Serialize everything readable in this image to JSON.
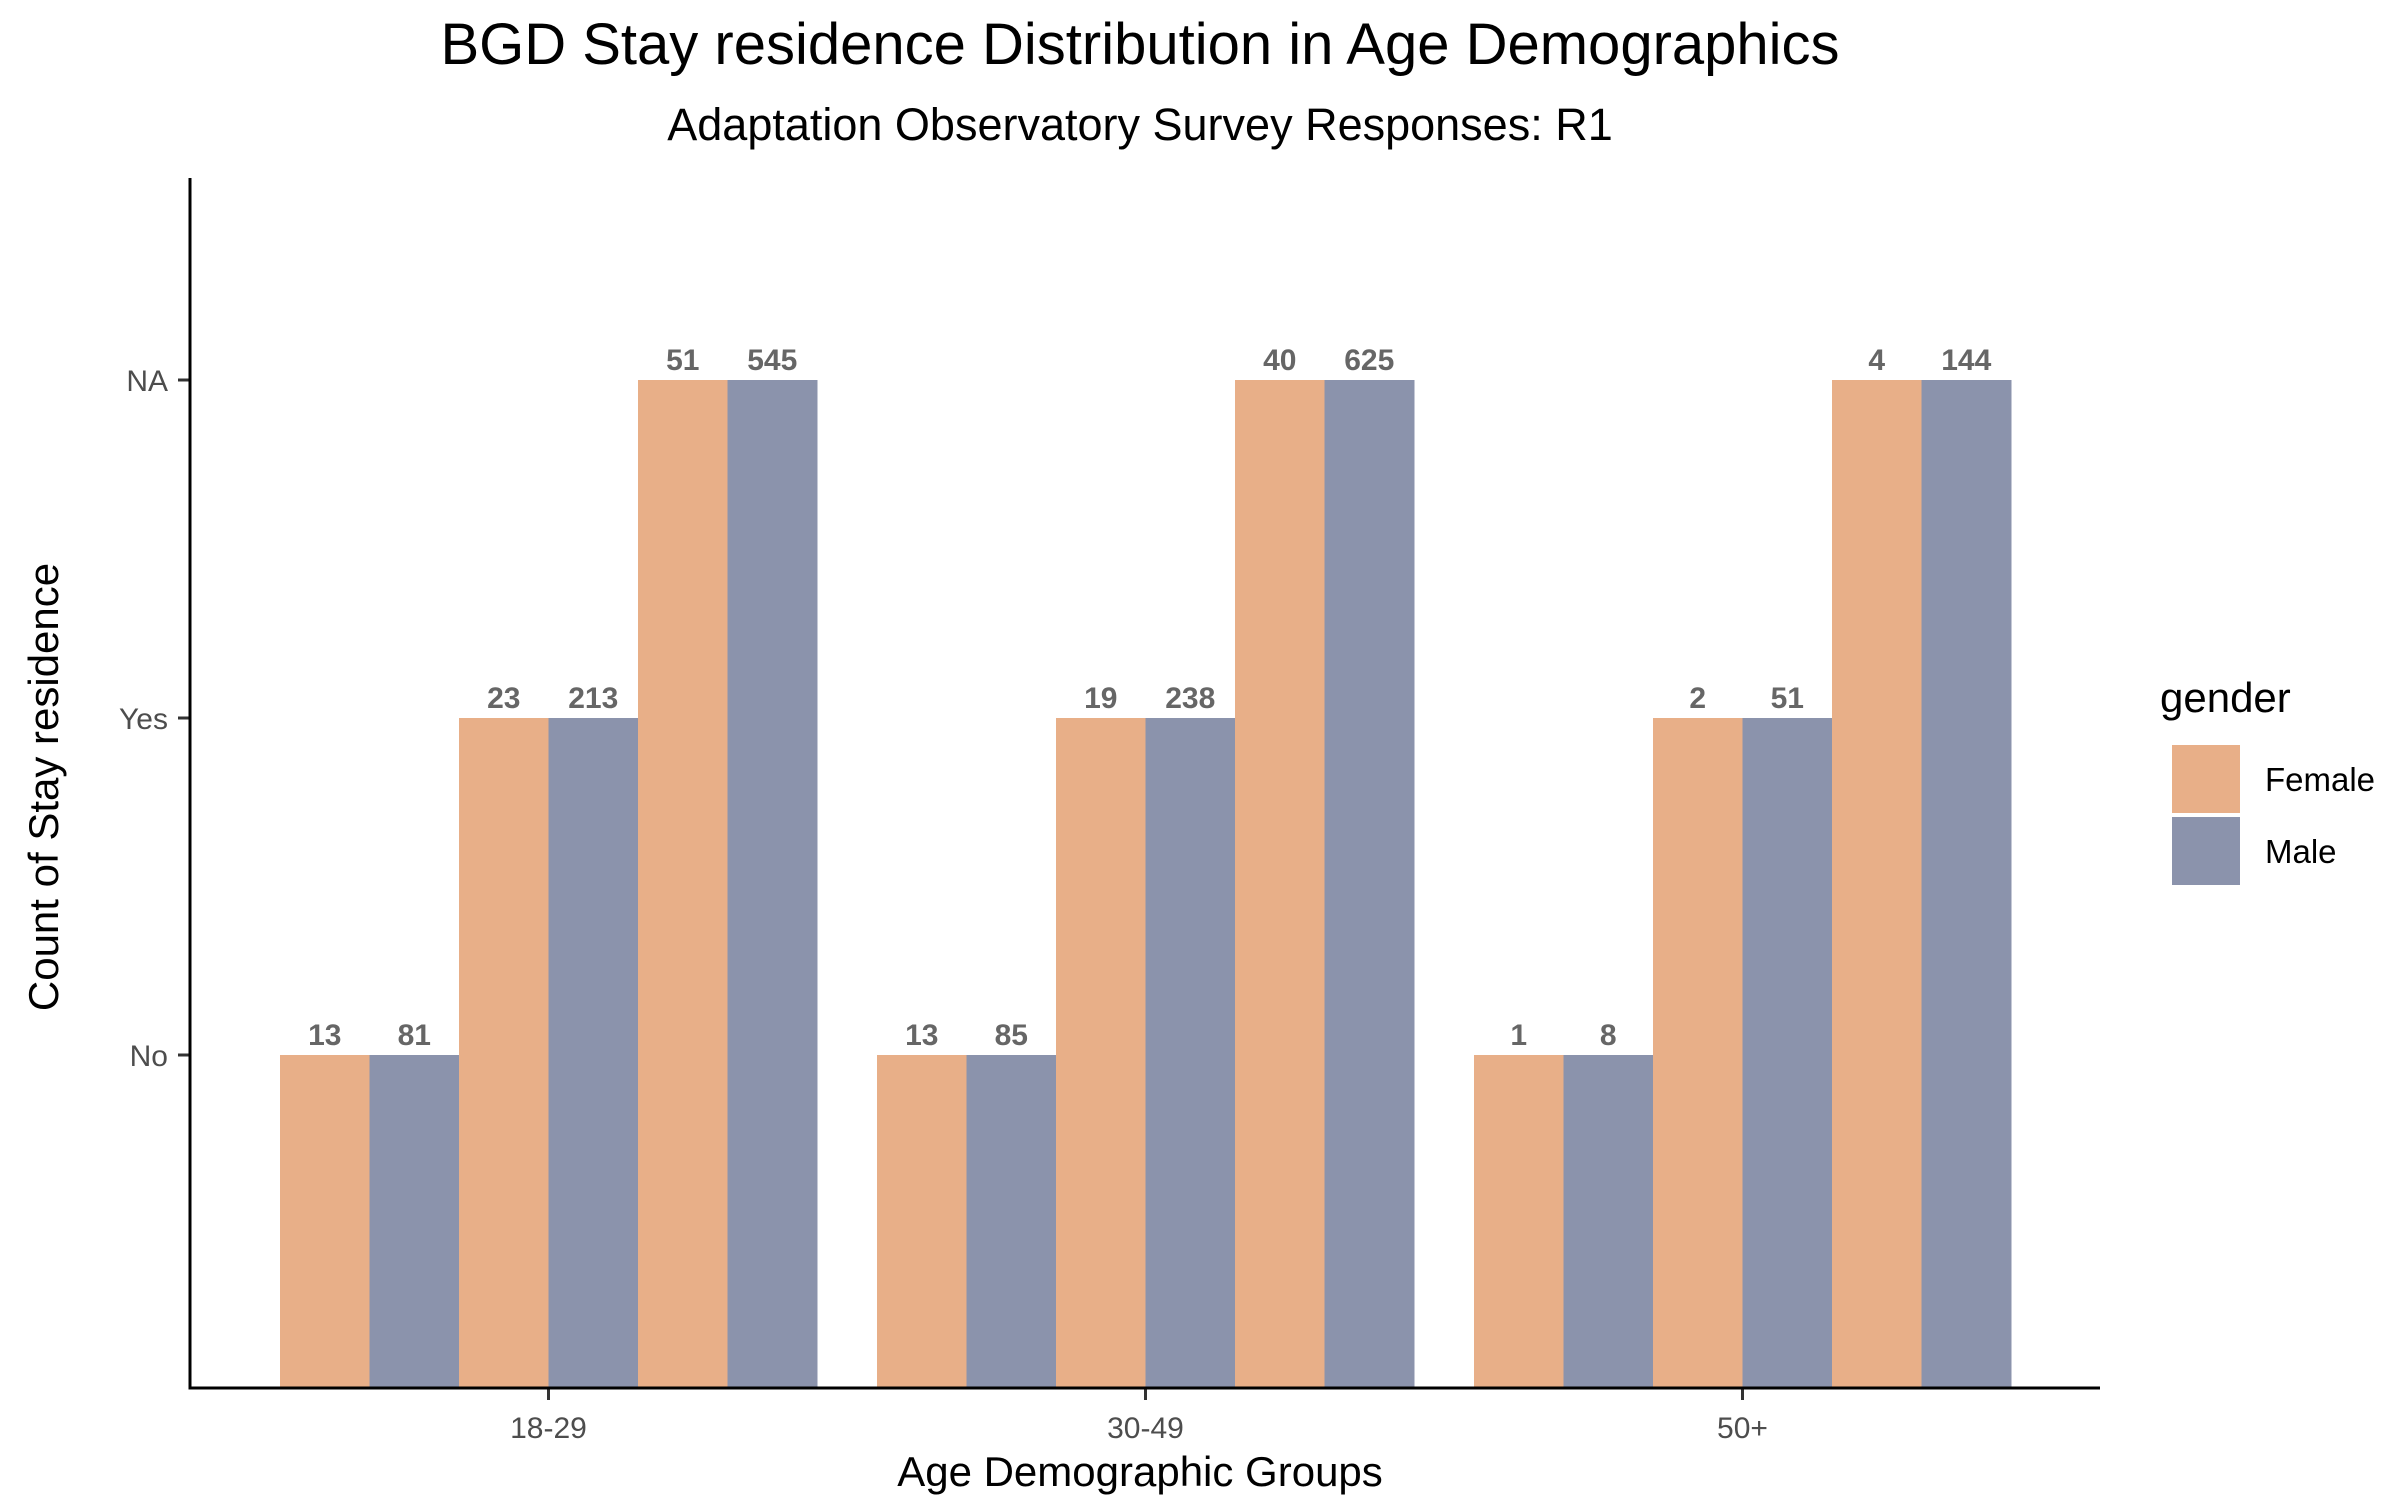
{
  "chart_data": {
    "type": "bar",
    "title": "BGD Stay residence Distribution in Age Demographics",
    "subtitle": "Adaptation Observatory Survey Responses: R1",
    "xlabel": "Age Demographic Groups",
    "ylabel": "Count of Stay residence",
    "categories": [
      "18-29",
      "30-49",
      "50+"
    ],
    "y_levels": [
      "No",
      "Yes",
      "NA"
    ],
    "legend": {
      "title": "gender",
      "position": "right"
    },
    "series": [
      {
        "name": "Female",
        "color": "#E8AF88",
        "counts": {
          "No": [
            13,
            13,
            1
          ],
          "Yes": [
            23,
            19,
            2
          ],
          "NA": [
            51,
            40,
            4
          ]
        }
      },
      {
        "name": "Male",
        "color": "#8B93AC",
        "counts": {
          "No": [
            81,
            85,
            8
          ],
          "Yes": [
            213,
            238,
            51
          ],
          "NA": [
            545,
            625,
            144
          ]
        }
      }
    ],
    "grid": false
  }
}
